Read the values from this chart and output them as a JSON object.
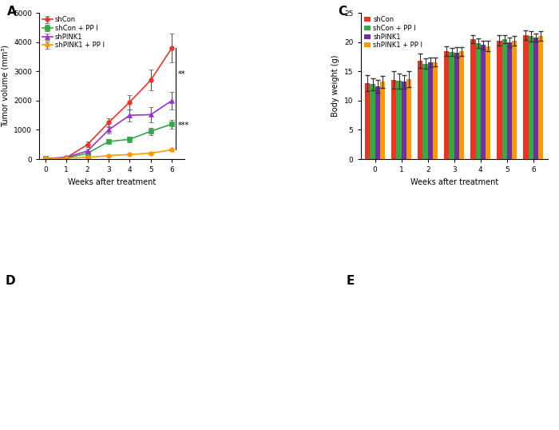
{
  "panel_A": {
    "xlabel": "Weeks after treatment",
    "ylabel": "Tumor volume (mm³)",
    "xlim": [
      -0.3,
      6.6
    ],
    "ylim": [
      0,
      5000
    ],
    "yticks": [
      0,
      1000,
      2000,
      3000,
      4000,
      5000
    ],
    "xticks": [
      0,
      1,
      2,
      3,
      4,
      5,
      6
    ],
    "weeks": [
      0,
      1,
      2,
      3,
      4,
      5,
      6
    ],
    "series": [
      {
        "label": "shCon",
        "color": "#EE3322",
        "marker": "o",
        "values": [
          20,
          50,
          500,
          1250,
          1950,
          2700,
          3800
        ],
        "errors": [
          10,
          30,
          100,
          150,
          250,
          350,
          500
        ]
      },
      {
        "label": "shCon + PP I",
        "color": "#33AA44",
        "marker": "s",
        "values": [
          20,
          40,
          200,
          600,
          680,
          950,
          1200
        ],
        "errors": [
          10,
          20,
          50,
          80,
          100,
          120,
          150
        ]
      },
      {
        "label": "shPINK1",
        "color": "#9933CC",
        "marker": "^",
        "values": [
          20,
          60,
          280,
          1000,
          1500,
          1520,
          2000
        ],
        "errors": [
          10,
          25,
          70,
          120,
          200,
          250,
          300
        ]
      },
      {
        "label": "shPINK1 + PP I",
        "color": "#FF9900",
        "marker": "o",
        "values": [
          20,
          30,
          60,
          120,
          160,
          200,
          320
        ],
        "errors": [
          10,
          15,
          20,
          30,
          35,
          40,
          50
        ]
      }
    ],
    "bracket_x": 6.2,
    "bracket_y_top": 3800,
    "bracket_y_mid": 2000,
    "bracket_y_bot": 320,
    "sig1": "**",
    "sig2": "***"
  },
  "panel_C": {
    "xlabel": "Weeks after treatment",
    "ylabel": "Body weight (g)",
    "xlim": [
      -0.55,
      6.55
    ],
    "ylim": [
      0,
      25
    ],
    "yticks": [
      0,
      5,
      10,
      15,
      20,
      25
    ],
    "xticks": [
      0,
      1,
      2,
      3,
      4,
      5,
      6
    ],
    "weeks": [
      0,
      1,
      2,
      3,
      4,
      5,
      6
    ],
    "bar_width": 0.19,
    "series": [
      {
        "label": "shCon",
        "color": "#EE3322",
        "values": [
          13.0,
          13.5,
          16.8,
          18.5,
          20.5,
          20.3,
          21.2
        ],
        "errors": [
          1.4,
          1.5,
          1.2,
          0.8,
          0.7,
          0.9,
          0.8
        ]
      },
      {
        "label": "shCon + PP I",
        "color": "#33AA44",
        "values": [
          12.8,
          13.4,
          16.3,
          18.3,
          19.8,
          20.5,
          21.0
        ],
        "errors": [
          1.0,
          1.3,
          0.9,
          0.7,
          0.8,
          0.7,
          0.9
        ]
      },
      {
        "label": "shPINK1",
        "color": "#7030A0",
        "values": [
          12.5,
          13.2,
          16.5,
          18.2,
          19.5,
          20.0,
          20.8
        ],
        "errors": [
          1.1,
          1.2,
          0.8,
          0.9,
          0.7,
          0.8,
          0.7
        ]
      },
      {
        "label": "shPINK1 + PP I",
        "color": "#FF9900",
        "values": [
          13.2,
          13.7,
          16.6,
          18.4,
          19.3,
          20.2,
          21.1
        ],
        "errors": [
          1.0,
          1.4,
          0.8,
          0.7,
          0.9,
          0.8,
          0.8
        ]
      }
    ]
  },
  "fig_width": 7.0,
  "fig_height": 5.38,
  "fig_dpi": 100
}
